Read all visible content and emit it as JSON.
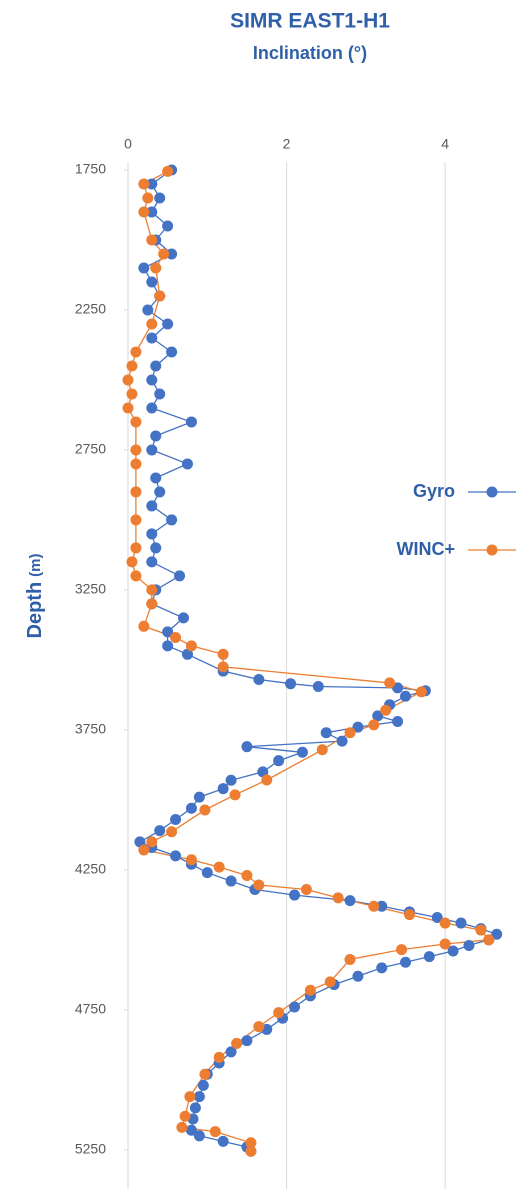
{
  "chart_data": {
    "type": "scatter-line",
    "title": "SIMR EAST1-H1",
    "subtitle": "Inclination (°)",
    "y_label": "Depth",
    "y_label_unit": "(m)",
    "xlim": [
      0,
      4.95
    ],
    "xticks": [
      0,
      2,
      4
    ],
    "x_axis_position": "top",
    "ylim": [
      1750,
      5390
    ],
    "yticks": [
      1750,
      2250,
      2750,
      3250,
      3750,
      4250,
      4750,
      5250
    ],
    "y_inverted": true,
    "grid": "vertical",
    "legend": "right",
    "series": [
      {
        "name": "Gyro",
        "color": "#4472c4",
        "values": [
          1750,
          1800,
          1850,
          1900,
          1950,
          2000,
          2050,
          2100,
          2150,
          2200,
          2250,
          2300,
          2350,
          2400,
          2450,
          2500,
          2550,
          2600,
          2650,
          2700,
          2750,
          2800,
          2850,
          2900,
          2950,
          3000,
          3050,
          3100,
          3150,
          3200,
          3250,
          3300,
          3350,
          3400,
          3450,
          3480,
          3540,
          3570,
          3585,
          3595,
          3600,
          3610,
          3630,
          3660,
          3700,
          3720,
          3740,
          3760,
          3790,
          3810,
          3830,
          3860,
          3900,
          3930,
          3960,
          3990,
          4030,
          4070,
          4110,
          4150,
          4170,
          4200,
          4230,
          4260,
          4290,
          4320,
          4340,
          4360,
          4380,
          4400,
          4420,
          4440,
          4460,
          4480,
          4500,
          4520,
          4540,
          4560,
          4580,
          4600,
          4630,
          4660,
          4700,
          4740,
          4780,
          4820,
          4860,
          4900,
          4940,
          4980,
          5020,
          5060,
          5100,
          5140,
          5180,
          5200,
          5220,
          5240,
          5255
        ],
        "x": [
          0.55,
          0.3,
          0.4,
          0.3,
          0.5,
          0.35,
          0.55,
          0.2,
          0.3,
          0.4,
          0.25,
          0.5,
          0.3,
          0.55,
          0.35,
          0.3,
          0.4,
          0.3,
          0.8,
          0.35,
          0.3,
          0.75,
          0.35,
          0.4,
          0.3,
          0.55,
          0.3,
          0.35,
          0.3,
          0.65,
          0.35,
          0.3,
          0.7,
          0.5,
          0.5,
          0.75,
          1.2,
          1.65,
          2.05,
          2.4,
          3.4,
          3.75,
          3.5,
          3.3,
          3.15,
          3.4,
          2.9,
          2.5,
          2.7,
          1.5,
          2.2,
          1.9,
          1.7,
          1.3,
          1.2,
          0.9,
          0.8,
          0.6,
          0.4,
          0.15,
          0.3,
          0.6,
          0.8,
          1.0,
          1.3,
          1.6,
          2.1,
          2.8,
          3.2,
          3.55,
          3.9,
          4.2,
          4.45,
          4.65,
          4.55,
          4.3,
          4.1,
          3.8,
          3.5,
          3.2,
          2.9,
          2.6,
          2.3,
          2.1,
          1.95,
          1.75,
          1.5,
          1.3,
          1.15,
          1.0,
          0.95,
          0.9,
          0.85,
          0.82,
          0.8,
          0.9,
          1.2,
          1.5,
          1.55
        ]
      },
      {
        "name": "WINC+",
        "color": "#ed7d31",
        "values": [
          1755,
          1800,
          1850,
          1900,
          2000,
          2050,
          2100,
          2200,
          2300,
          2400,
          2450,
          2500,
          2550,
          2600,
          2650,
          2750,
          2800,
          2900,
          3000,
          3100,
          3150,
          3200,
          3250,
          3300,
          3380,
          3420,
          3450,
          3480,
          3525,
          3582,
          3614,
          3680,
          3732,
          3760,
          3821,
          3929,
          3982,
          4036,
          4114,
          4150,
          4179,
          4214,
          4240,
          4270,
          4304,
          4320,
          4350,
          4380,
          4410,
          4440,
          4465,
          4500,
          4515,
          4535,
          4570,
          4650,
          4680,
          4760,
          4810,
          4870,
          4920,
          4980,
          5060,
          5130,
          5170,
          5185,
          5225,
          5255
        ],
        "x": [
          0.5,
          0.2,
          0.25,
          0.2,
          0.3,
          0.45,
          0.35,
          0.4,
          0.3,
          0.1,
          0.05,
          0.0,
          0.05,
          0.0,
          0.1,
          0.1,
          0.1,
          0.1,
          0.1,
          0.1,
          0.05,
          0.1,
          0.3,
          0.3,
          0.2,
          0.6,
          0.8,
          1.2,
          1.2,
          3.3,
          3.7,
          3.25,
          3.1,
          2.8,
          2.45,
          1.75,
          1.35,
          0.97,
          0.55,
          0.3,
          0.2,
          0.8,
          1.15,
          1.5,
          1.65,
          2.25,
          2.65,
          3.1,
          3.55,
          4.0,
          4.45,
          4.55,
          4.0,
          3.45,
          2.8,
          2.55,
          2.3,
          1.9,
          1.65,
          1.37,
          1.15,
          0.97,
          0.78,
          0.72,
          0.68,
          1.1,
          1.55,
          1.55
        ]
      }
    ]
  }
}
